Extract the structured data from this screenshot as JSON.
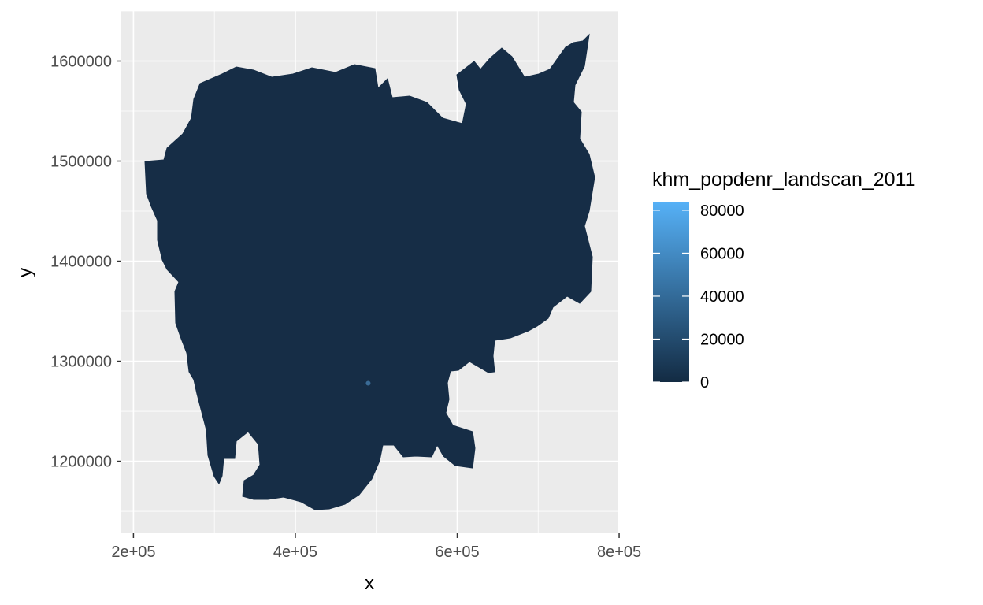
{
  "chart_data": {
    "type": "heatmap",
    "title": "",
    "xlabel": "x",
    "ylabel": "y",
    "xlim": [
      185000,
      798000
    ],
    "ylim": [
      1128000,
      1650000
    ],
    "x_ticks": [
      {
        "value": 200000,
        "label": "2e+05"
      },
      {
        "value": 400000,
        "label": "4e+05"
      },
      {
        "value": 600000,
        "label": "6e+05"
      },
      {
        "value": 800000,
        "label": "8e+05"
      }
    ],
    "y_ticks": [
      {
        "value": 1200000,
        "label": "1200000"
      },
      {
        "value": 1300000,
        "label": "1300000"
      },
      {
        "value": 1400000,
        "label": "1400000"
      },
      {
        "value": 1500000,
        "label": "1500000"
      },
      {
        "value": 1600000,
        "label": "1600000"
      }
    ],
    "grid": true,
    "panel_background": "#ebebeb",
    "fill_color_low": "#132b43",
    "fill_color_high": "#56b1f7",
    "dominant_fill": "#162d46",
    "hotspots": [
      {
        "x": 490000,
        "y": 1278000,
        "value": 40000
      }
    ],
    "legend": {
      "title": "khm_popdenr_landscan_2011",
      "placement": "right",
      "min": 0,
      "max": 84000,
      "breaks": [
        {
          "value": 0,
          "label": "0"
        },
        {
          "value": 20000,
          "label": "20000"
        },
        {
          "value": 40000,
          "label": "40000"
        },
        {
          "value": 60000,
          "label": "60000"
        },
        {
          "value": 80000,
          "label": "80000"
        }
      ]
    }
  }
}
